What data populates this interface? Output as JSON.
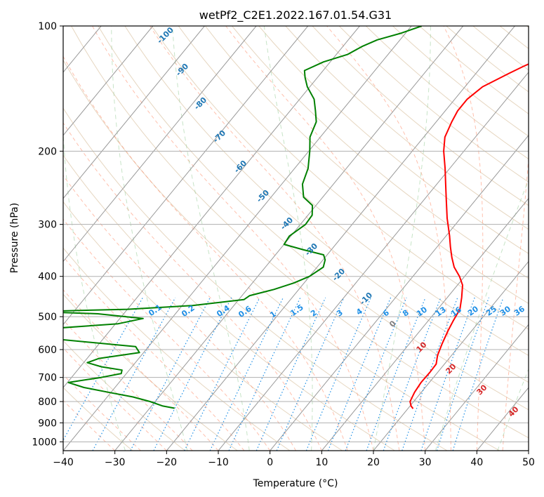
{
  "chart_data": {
    "type": "line",
    "diagram": "skew-t",
    "title": "wetPf2_C2E1.2022.167.01.54.G31",
    "xlabel": "Temperature (°C)",
    "ylabel": "Pressure (hPa)",
    "xlim": [
      -40,
      50
    ],
    "ylim": [
      1050,
      100
    ],
    "y_scale": "log",
    "x_ticks": [
      "−40",
      "−30",
      "−20",
      "−10",
      "0",
      "10",
      "20",
      "30",
      "40",
      "50"
    ],
    "y_ticks": [
      "100",
      "200",
      "300",
      "400",
      "500",
      "600",
      "700",
      "800",
      "900",
      "1000"
    ],
    "grid": true,
    "series": [
      {
        "kind": "temperature",
        "color": "#ff0000",
        "points": [
          [
            832,
            21.0
          ],
          [
            820,
            20.2
          ],
          [
            800,
            19.3
          ],
          [
            760,
            18.7
          ],
          [
            720,
            18.4
          ],
          [
            680,
            18.5
          ],
          [
            650,
            18.4
          ],
          [
            620,
            17.3
          ],
          [
            580,
            16.3
          ],
          [
            540,
            15.4
          ],
          [
            510,
            14.8
          ],
          [
            480,
            14.3
          ],
          [
            450,
            12.8
          ],
          [
            420,
            11.0
          ],
          [
            400,
            9.0
          ],
          [
            380,
            6.5
          ],
          [
            360,
            4.5
          ],
          [
            340,
            2.6
          ],
          [
            320,
            0.7
          ],
          [
            290,
            -2.6
          ],
          [
            260,
            -5.9
          ],
          [
            240,
            -8.3
          ],
          [
            220,
            -10.9
          ],
          [
            200,
            -13.9
          ],
          [
            185,
            -15.9
          ],
          [
            170,
            -17.0
          ],
          [
            160,
            -17.6
          ],
          [
            150,
            -17.6
          ],
          [
            140,
            -16.6
          ],
          [
            130,
            -13.6
          ],
          [
            125,
            -11.9
          ],
          [
            120,
            -9.9
          ],
          [
            115,
            -8.3
          ],
          [
            110,
            -7.4
          ],
          [
            105,
            -6.0
          ],
          [
            102,
            -4.4
          ],
          [
            100,
            -3.0
          ]
        ]
      },
      {
        "kind": "dewpoint",
        "color": "#008000",
        "points": [
          [
            830,
            -25.2
          ],
          [
            820,
            -27.8
          ],
          [
            800,
            -31.0
          ],
          [
            780,
            -35.0
          ],
          [
            760,
            -40.5
          ],
          [
            740,
            -46.0
          ],
          [
            720,
            -49.8
          ],
          [
            700,
            -44.3
          ],
          [
            685,
            -41.0
          ],
          [
            672,
            -41.4
          ],
          [
            660,
            -45.9
          ],
          [
            645,
            -49.3
          ],
          [
            630,
            -47.7
          ],
          [
            610,
            -40.8
          ],
          [
            590,
            -42.5
          ],
          [
            565,
            -60.0
          ],
          [
            550,
            -73.0
          ],
          [
            535,
            -62.5
          ],
          [
            520,
            -49.5
          ],
          [
            505,
            -45.5
          ],
          [
            492,
            -55.0
          ],
          [
            486,
            -67.5
          ],
          [
            480,
            -50.0
          ],
          [
            470,
            -38.0
          ],
          [
            455,
            -29.0
          ],
          [
            445,
            -28.5
          ],
          [
            430,
            -24.8
          ],
          [
            415,
            -22.0
          ],
          [
            400,
            -20.0
          ],
          [
            380,
            -18.8
          ],
          [
            365,
            -19.6
          ],
          [
            355,
            -20.7
          ],
          [
            345,
            -25.5
          ],
          [
            335,
            -30.0
          ],
          [
            320,
            -30.3
          ],
          [
            300,
            -29.0
          ],
          [
            285,
            -29.2
          ],
          [
            270,
            -30.7
          ],
          [
            258,
            -33.7
          ],
          [
            240,
            -36.0
          ],
          [
            220,
            -37.4
          ],
          [
            200,
            -39.8
          ],
          [
            185,
            -42.0
          ],
          [
            170,
            -43.2
          ],
          [
            160,
            -45.1
          ],
          [
            150,
            -47.2
          ],
          [
            140,
            -50.5
          ],
          [
            133,
            -52.4
          ],
          [
            128,
            -53.6
          ],
          [
            122,
            -51.3
          ],
          [
            117,
            -47.8
          ],
          [
            112,
            -46.3
          ],
          [
            108,
            -44.4
          ],
          [
            104,
            -40.8
          ],
          [
            100,
            -38.0
          ]
        ]
      }
    ],
    "dry_adiabat_labels": [
      "-100",
      "-90",
      "-80",
      "-70",
      "-60",
      "-50",
      "-40",
      "-30",
      "-20",
      "-10"
    ],
    "moist_adiabat_labels": [
      "0",
      "10",
      "20",
      "30",
      "40"
    ],
    "mixing_ratio_labels": [
      "0.1",
      "0.2",
      "0.4",
      "0.6",
      "1",
      "1.5",
      "2",
      "3",
      "4",
      "6",
      "8",
      "10",
      "13",
      "16",
      "20",
      "25",
      "30",
      "36"
    ]
  }
}
